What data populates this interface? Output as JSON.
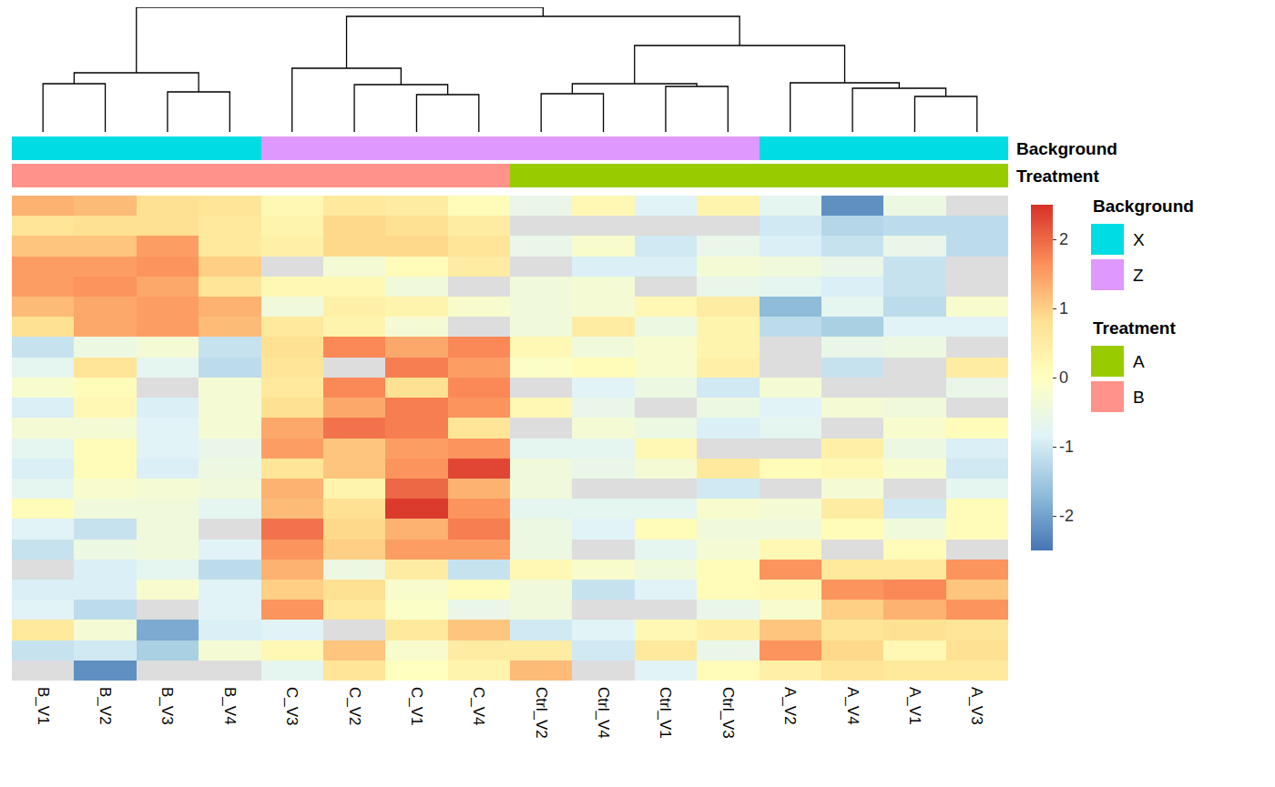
{
  "chart_data": {
    "type": "heatmap",
    "tick_labels": "x",
    "columns": [
      "B_V1",
      "B_V2",
      "B_V3",
      "B_V4",
      "C_V3",
      "C_V2",
      "C_V1",
      "C_V4",
      "Ctrl_V2",
      "Ctrl_V4",
      "Ctrl_V1",
      "Ctrl_V3",
      "A_V2",
      "A_V4",
      "A_V1",
      "A_V3"
    ],
    "z": [
      [
        1.3,
        1.2,
        0.8,
        0.7,
        0.2,
        0.6,
        0.5,
        0.1,
        -0.6,
        0.2,
        -0.8,
        0.3,
        -0.7,
        -2.2,
        -0.5,
        null
      ],
      [
        0.7,
        0.8,
        0.8,
        0.6,
        0.3,
        0.9,
        0.8,
        0.5,
        null,
        null,
        null,
        null,
        -1.0,
        -1.3,
        -1.2,
        -1.2
      ],
      [
        1.1,
        1.1,
        1.5,
        0.6,
        0.4,
        0.9,
        0.9,
        0.7,
        -0.6,
        -0.2,
        -1.0,
        -0.6,
        -0.9,
        -1.1,
        -0.6,
        -1.2
      ],
      [
        1.5,
        1.5,
        1.6,
        1.0,
        null,
        -0.3,
        0.1,
        0.5,
        null,
        -0.9,
        -0.9,
        -0.3,
        -0.4,
        -0.6,
        -1.1,
        null
      ],
      [
        1.5,
        1.6,
        1.4,
        0.7,
        0.2,
        0.2,
        -0.4,
        null,
        -0.4,
        -0.3,
        null,
        -0.6,
        -0.7,
        -0.9,
        -1.1,
        null
      ],
      [
        1.2,
        1.4,
        1.5,
        1.3,
        -0.4,
        0.4,
        0.3,
        -0.2,
        -0.4,
        -0.3,
        0.2,
        0.5,
        -1.7,
        -0.7,
        -1.2,
        -0.2
      ],
      [
        0.8,
        1.4,
        1.5,
        1.2,
        0.6,
        0.3,
        -0.3,
        null,
        -0.4,
        0.5,
        -0.5,
        0.3,
        -1.2,
        -1.4,
        -0.8,
        -0.8
      ],
      [
        -1.1,
        -0.5,
        -0.3,
        -1.1,
        0.8,
        1.7,
        1.4,
        1.7,
        0.2,
        -0.4,
        -0.2,
        0.3,
        null,
        -0.6,
        -0.5,
        null
      ],
      [
        -0.7,
        0.7,
        -0.7,
        -1.2,
        0.7,
        null,
        1.8,
        1.5,
        -0.1,
        0.1,
        -0.2,
        0.4,
        null,
        -1.1,
        null,
        0.5
      ],
      [
        -0.2,
        0.1,
        null,
        -0.3,
        0.6,
        1.7,
        0.8,
        1.7,
        null,
        -0.8,
        -0.5,
        -1.0,
        -0.3,
        null,
        null,
        -0.6
      ],
      [
        -0.9,
        0.2,
        -0.9,
        -0.3,
        0.8,
        1.4,
        1.8,
        1.6,
        0.2,
        -0.6,
        null,
        -0.5,
        -0.8,
        -0.3,
        -0.4,
        null
      ],
      [
        -0.3,
        -0.3,
        -0.8,
        -0.3,
        1.4,
        1.9,
        1.8,
        0.7,
        null,
        -0.3,
        -0.5,
        -0.9,
        -0.7,
        null,
        -0.2,
        0.1
      ],
      [
        -0.7,
        0.1,
        -0.8,
        -0.6,
        1.5,
        1.1,
        1.5,
        1.6,
        -0.7,
        -0.7,
        0.2,
        null,
        null,
        0.4,
        -0.5,
        -0.9
      ],
      [
        -0.9,
        0.1,
        -0.9,
        -0.5,
        0.7,
        1.1,
        1.6,
        2.3,
        -0.4,
        -0.6,
        -0.3,
        0.6,
        0.1,
        0.2,
        -0.2,
        -1.0
      ],
      [
        -0.7,
        -0.2,
        -0.3,
        -0.4,
        1.3,
        0.3,
        2.0,
        1.3,
        -0.4,
        null,
        null,
        -1.0,
        null,
        -0.3,
        null,
        -0.7
      ],
      [
        0.1,
        -0.4,
        -0.4,
        -0.7,
        1.2,
        0.8,
        2.4,
        1.6,
        -0.7,
        -0.7,
        -0.7,
        -0.2,
        -0.3,
        0.5,
        -1.0,
        0.1
      ],
      [
        -0.8,
        -1.1,
        -0.4,
        null,
        1.9,
        0.9,
        1.3,
        1.8,
        -0.5,
        -0.8,
        0.1,
        -0.4,
        -0.4,
        0.1,
        -0.4,
        0.1
      ],
      [
        -1.1,
        -0.5,
        -0.4,
        -0.8,
        1.6,
        1.0,
        1.5,
        1.5,
        -0.5,
        null,
        -0.7,
        -0.3,
        0.2,
        null,
        0.1,
        null
      ],
      [
        null,
        -0.9,
        -0.7,
        -1.2,
        1.3,
        -0.5,
        0.5,
        -1.1,
        0.2,
        -0.2,
        -0.4,
        0.1,
        1.6,
        0.6,
        0.6,
        1.6
      ],
      [
        -0.9,
        -0.9,
        -0.2,
        -0.8,
        1.0,
        0.8,
        -0.2,
        0.1,
        -0.4,
        -1.1,
        -0.8,
        0.1,
        0.2,
        1.6,
        1.7,
        1.1
      ],
      [
        -0.8,
        -1.2,
        null,
        -0.8,
        1.6,
        0.6,
        -0.1,
        -0.6,
        -0.4,
        null,
        null,
        -0.6,
        -0.2,
        1.0,
        1.3,
        1.6
      ],
      [
        0.6,
        -0.3,
        -1.9,
        -0.9,
        -0.8,
        null,
        0.6,
        1.1,
        -1.0,
        -0.8,
        0.2,
        0.4,
        1.1,
        0.7,
        0.8,
        0.7
      ],
      [
        -1.1,
        -1.0,
        -1.4,
        -0.3,
        0.2,
        1.1,
        -0.2,
        0.5,
        0.5,
        -1.0,
        0.6,
        -0.6,
        1.6,
        0.9,
        0.2,
        0.8
      ],
      [
        null,
        -2.2,
        null,
        null,
        -0.7,
        0.7,
        0.0,
        0.3,
        1.2,
        null,
        -0.8,
        0.1,
        0.4,
        0.7,
        0.6,
        0.6
      ]
    ],
    "zlim": [
      -2.5,
      2.5
    ],
    "zticks": [
      -2,
      -1,
      0,
      1,
      2
    ],
    "annotation_rows": [
      {
        "name": "Background",
        "levels": [
          "X",
          "Z"
        ],
        "colors": [
          "#00DCE4",
          "#DF98FD"
        ],
        "values": [
          "X",
          "X",
          "X",
          "X",
          "Z",
          "Z",
          "Z",
          "Z",
          "Z",
          "Z",
          "Z",
          "Z",
          "X",
          "X",
          "X",
          "X"
        ]
      },
      {
        "name": "Treatment",
        "levels": [
          "A",
          "B"
        ],
        "colors": [
          "#99CC00",
          "#FF928A"
        ],
        "values": [
          "B",
          "B",
          "B",
          "B",
          "B",
          "B",
          "B",
          "B",
          "A",
          "A",
          "A",
          "A",
          "A",
          "A",
          "A",
          "A"
        ]
      }
    ],
    "dendrogram": {
      "merges": [
        {
          "children": [
            "B_V1",
            "B_V2"
          ],
          "height": 53
        },
        {
          "children": [
            "B_V3",
            "B_V4"
          ],
          "height": 44
        },
        {
          "children": [
            0,
            1
          ],
          "height": 65
        },
        {
          "children": [
            "C_V1",
            "C_V4"
          ],
          "height": 41
        },
        {
          "children": [
            "C_V2",
            3
          ],
          "height": 52
        },
        {
          "children": [
            "C_V3",
            4
          ],
          "height": 70
        },
        {
          "children": [
            "Ctrl_V2",
            "Ctrl_V4"
          ],
          "height": 42
        },
        {
          "children": [
            "Ctrl_V1",
            "Ctrl_V3"
          ],
          "height": 50
        },
        {
          "children": [
            6,
            7
          ],
          "height": 53
        },
        {
          "children": [
            "A_V1",
            "A_V3"
          ],
          "height": 39
        },
        {
          "children": [
            "A_V4",
            9
          ],
          "height": 48
        },
        {
          "children": [
            "A_V2",
            10
          ],
          "height": 54
        },
        {
          "children": [
            8,
            11
          ],
          "height": 95
        },
        {
          "children": [
            5,
            12
          ],
          "height": 127
        },
        {
          "children": [
            2,
            13
          ],
          "height": 137
        }
      ]
    }
  }
}
